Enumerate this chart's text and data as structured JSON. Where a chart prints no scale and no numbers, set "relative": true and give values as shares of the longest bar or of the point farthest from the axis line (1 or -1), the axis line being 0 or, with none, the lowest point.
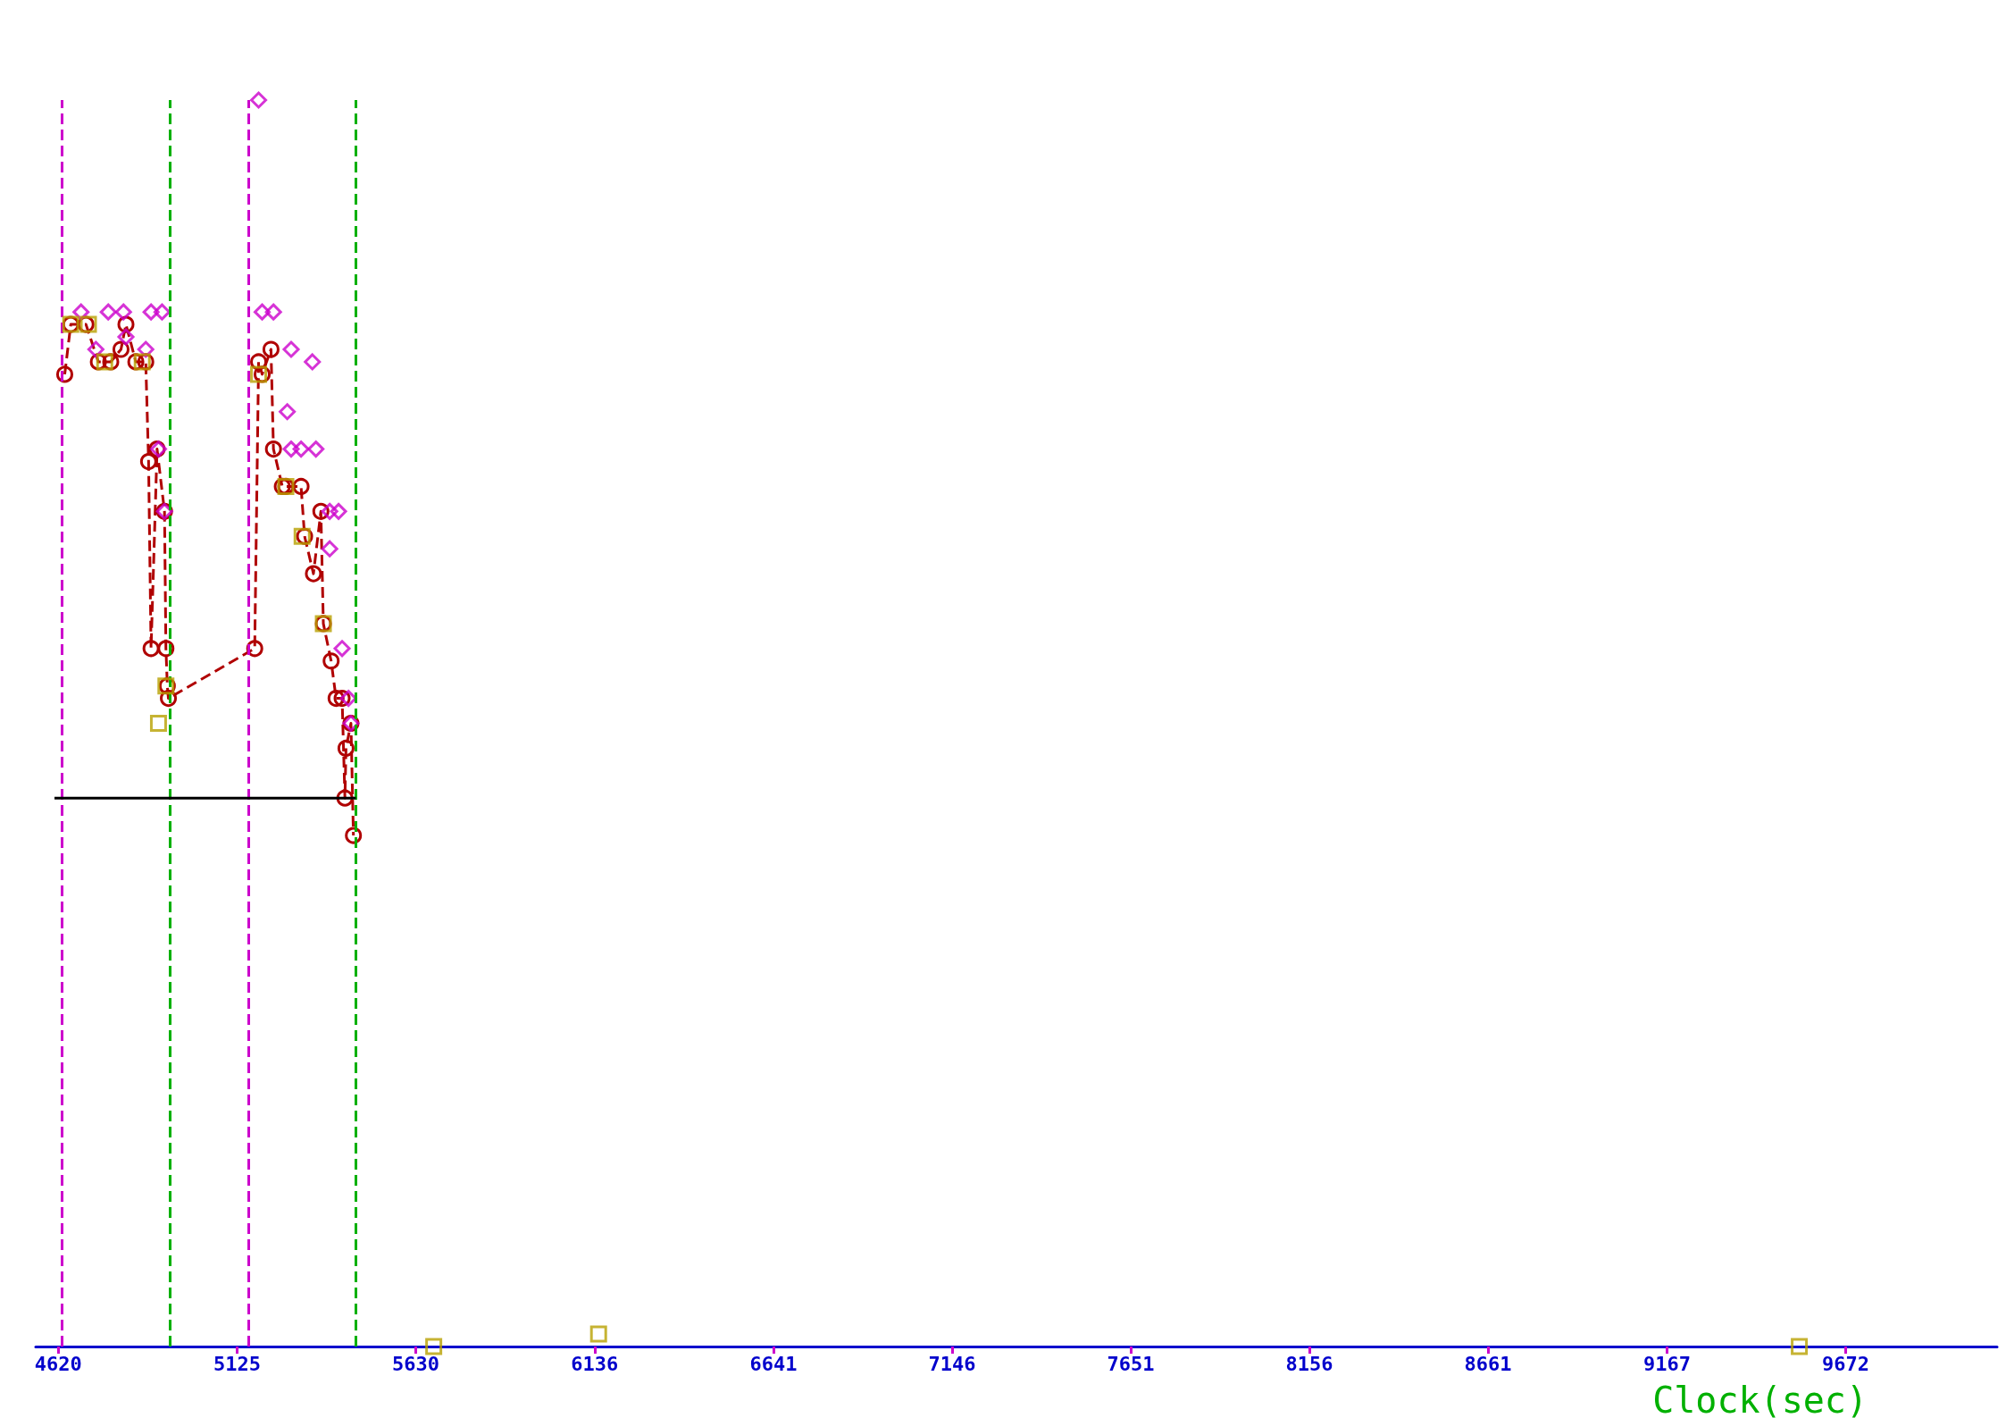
{
  "chart_data": {
    "type": "scatter",
    "relative": true,
    "xlabel": "Clock(sec)",
    "xlim": [
      4556,
      10100
    ],
    "xticks": [
      4620,
      5125,
      5630,
      6136,
      6641,
      7146,
      7651,
      8156,
      8661,
      9167,
      9672
    ],
    "grid": false,
    "series": [
      {
        "type": "line",
        "color": "#b00000",
        "marker": "circle",
        "line_style": "dashed",
        "x": [
          4638,
          4655,
          4698,
          4733,
          4768,
          4797,
          4811,
          4839,
          4867,
          4875,
          4882,
          4899,
          4920,
          4924,
          4928,
          4931,
          5175,
          5186,
          5196,
          5221,
          5228,
          5253,
          5263,
          5306,
          5316,
          5341,
          5362,
          5369,
          5391,
          5405,
          5422,
          5430,
          5433,
          5447,
          5454
        ],
        "values": [
          0.78,
          0.82,
          0.82,
          0.79,
          0.79,
          0.8,
          0.82,
          0.79,
          0.79,
          0.71,
          0.56,
          0.72,
          0.67,
          0.56,
          0.53,
          0.52,
          0.56,
          0.79,
          0.78,
          0.8,
          0.72,
          0.69,
          0.69,
          0.69,
          0.65,
          0.62,
          0.67,
          0.58,
          0.55,
          0.52,
          0.52,
          0.44,
          0.48,
          0.5,
          0.41
        ]
      },
      {
        "color": "#cc00cc",
        "marker": "diamond",
        "x": [
          4684,
          4726,
          4761,
          4804,
          4811,
          4867,
          4882,
          4913,
          4903,
          4920,
          5186,
          5196,
          5228,
          5278,
          5267,
          5278,
          5306,
          5348,
          5338,
          5387,
          5412,
          5387,
          5422,
          5440,
          5447
        ],
        "values": [
          0.83,
          0.8,
          0.83,
          0.83,
          0.81,
          0.8,
          0.83,
          0.83,
          0.72,
          0.67,
          1,
          0.83,
          0.83,
          0.8,
          0.75,
          0.72,
          0.72,
          0.72,
          0.79,
          0.67,
          0.67,
          0.64,
          0.56,
          0.52,
          0.5
        ]
      },
      {
        "color": "#b8a000",
        "marker": "square",
        "x": [
          4655,
          4705,
          4751,
          4857,
          4903,
          4924,
          5186,
          5263,
          5309,
          5369,
          5681,
          6147,
          9541
        ],
        "values": [
          0.82,
          0.82,
          0.79,
          0.79,
          0.5,
          0.53,
          0.78,
          0.69,
          0.65,
          0.58,
          0,
          0.01,
          0
        ]
      },
      {
        "type": "line",
        "color": "#000000",
        "marker": "none",
        "x": [
          4609,
          5461
        ],
        "values": [
          0.44,
          0.44
        ]
      }
    ],
    "ref_lines": [
      {
        "axis": "x",
        "value": 4631,
        "color": "#cc00cc",
        "line_style": "dashed"
      },
      {
        "axis": "x",
        "value": 4935,
        "color": "#00b000",
        "line_style": "dashed"
      },
      {
        "axis": "x",
        "value": 5157,
        "color": "#cc00cc",
        "line_style": "dashed"
      },
      {
        "axis": "x",
        "value": 5461,
        "color": "#00b000",
        "line_style": "dashed"
      }
    ]
  }
}
